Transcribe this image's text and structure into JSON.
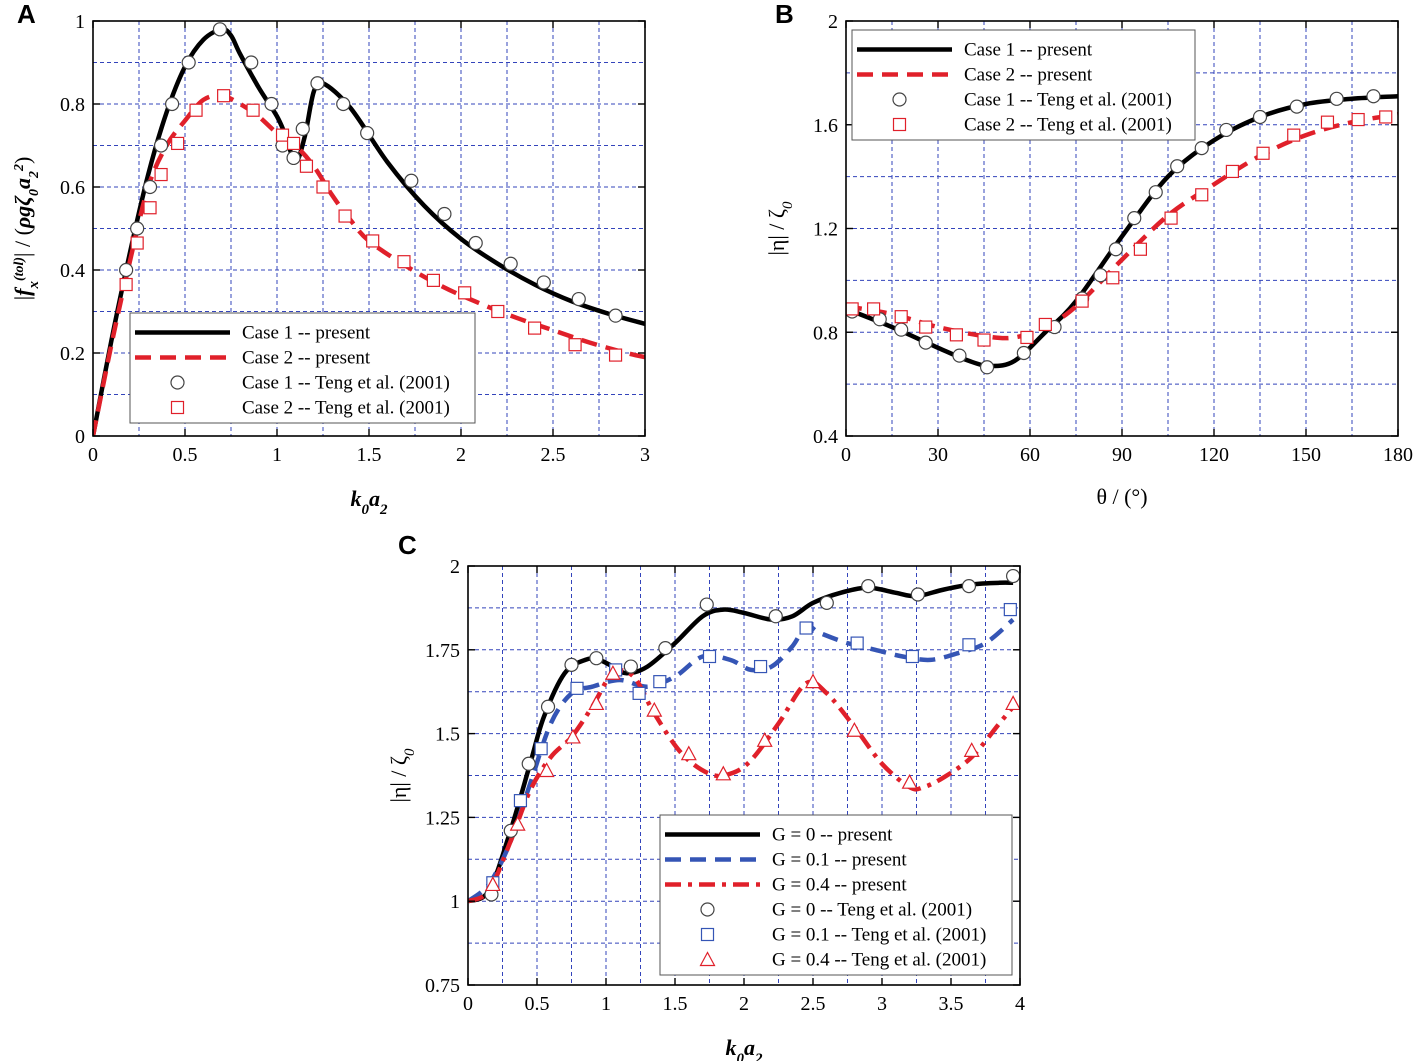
{
  "chart_data": [
    {
      "panel": "A",
      "type": "line",
      "xlabel_main": "k",
      "xlabel_sub1": "0",
      "xlabel_mid": "a",
      "xlabel_sub2": "2",
      "ylabel_parts": [
        "|",
        "f",
        "x",
        "(tol)",
        "|",
        " / (",
        "ρgζ",
        "0",
        "a",
        "2",
        "2",
        ")"
      ],
      "xlim": [
        0,
        3
      ],
      "ylim": [
        0,
        1
      ],
      "xticks": [
        "0",
        "0.5",
        "1",
        "1.5",
        "2",
        "2.5",
        "3"
      ],
      "yticks": [
        "0",
        "0.2",
        "0.4",
        "0.6",
        "0.8",
        "1"
      ],
      "grid": true,
      "legend_position": "bottom-center",
      "series": [
        {
          "name": "Case 1 -- present",
          "style": "solid",
          "color": "#000000",
          "x": [
            0,
            0.1,
            0.2,
            0.3,
            0.4,
            0.5,
            0.6,
            0.7,
            0.75,
            0.8,
            0.9,
            1.0,
            1.05,
            1.1,
            1.15,
            1.2,
            1.25,
            1.4,
            1.6,
            1.8,
            2.0,
            2.2,
            2.4,
            2.6,
            2.8,
            3.0
          ],
          "y": [
            0,
            0.23,
            0.44,
            0.63,
            0.78,
            0.89,
            0.955,
            0.98,
            0.965,
            0.92,
            0.84,
            0.77,
            0.72,
            0.66,
            0.72,
            0.83,
            0.85,
            0.79,
            0.66,
            0.555,
            0.475,
            0.415,
            0.365,
            0.325,
            0.295,
            0.27
          ]
        },
        {
          "name": "Case 2 -- present",
          "style": "dashed",
          "color": "#e0202a",
          "x": [
            0,
            0.1,
            0.2,
            0.3,
            0.4,
            0.5,
            0.6,
            0.7,
            0.8,
            0.9,
            1.0,
            1.1,
            1.2,
            1.3,
            1.4,
            1.5,
            1.7,
            1.9,
            2.1,
            2.3,
            2.5,
            2.7,
            2.9,
            3.0
          ],
          "y": [
            0,
            0.22,
            0.42,
            0.6,
            0.7,
            0.76,
            0.81,
            0.82,
            0.8,
            0.77,
            0.73,
            0.7,
            0.65,
            0.58,
            0.52,
            0.47,
            0.41,
            0.36,
            0.32,
            0.285,
            0.255,
            0.225,
            0.2,
            0.19
          ]
        },
        {
          "name": "Case 1 -- Teng et al. (2001)",
          "style": "circle",
          "color": "#444444",
          "x": [
            0.18,
            0.24,
            0.31,
            0.37,
            0.43,
            0.52,
            0.69,
            0.86,
            0.97,
            1.03,
            1.09,
            1.14,
            1.22,
            1.36,
            1.49,
            1.73,
            1.91,
            2.08,
            2.27,
            2.45,
            2.64,
            2.84
          ],
          "y": [
            0.4,
            0.5,
            0.6,
            0.7,
            0.8,
            0.9,
            0.98,
            0.9,
            0.8,
            0.7,
            0.67,
            0.74,
            0.85,
            0.8,
            0.73,
            0.615,
            0.535,
            0.465,
            0.415,
            0.37,
            0.33,
            0.29
          ]
        },
        {
          "name": "Case 2 -- Teng et al. (2001)",
          "style": "square",
          "color": "#e0202a",
          "x": [
            0.18,
            0.24,
            0.31,
            0.37,
            0.46,
            0.56,
            0.71,
            0.87,
            1.03,
            1.09,
            1.16,
            1.25,
            1.37,
            1.52,
            1.69,
            1.85,
            2.02,
            2.2,
            2.4,
            2.62,
            2.84
          ],
          "y": [
            0.365,
            0.465,
            0.55,
            0.63,
            0.705,
            0.785,
            0.82,
            0.785,
            0.725,
            0.705,
            0.65,
            0.6,
            0.53,
            0.47,
            0.42,
            0.375,
            0.345,
            0.3,
            0.26,
            0.22,
            0.195
          ]
        }
      ]
    },
    {
      "panel": "B",
      "type": "line",
      "xlabel": "θ / (°)",
      "ylabel": "|η| / ζ",
      "ylabel_sub": "0",
      "xlim": [
        0,
        180
      ],
      "ylim": [
        0.4,
        2
      ],
      "xticks": [
        "0",
        "30",
        "60",
        "90",
        "120",
        "150",
        "180"
      ],
      "yticks": [
        "0.4",
        "0.8",
        "1.2",
        "1.6",
        "2"
      ],
      "grid": true,
      "legend_position": "top-left",
      "series": [
        {
          "name": "Case 1 -- present",
          "style": "solid",
          "color": "#000000",
          "x": [
            0,
            15,
            30,
            40,
            47,
            55,
            65,
            75,
            90,
            105,
            120,
            135,
            150,
            165,
            180
          ],
          "y": [
            0.89,
            0.82,
            0.74,
            0.69,
            0.67,
            0.69,
            0.8,
            0.92,
            1.17,
            1.4,
            1.54,
            1.63,
            1.68,
            1.7,
            1.71
          ]
        },
        {
          "name": "Case 2 -- present",
          "style": "dashed",
          "color": "#e0202a",
          "x": [
            0,
            15,
            30,
            45,
            55,
            65,
            75,
            90,
            105,
            120,
            135,
            150,
            165,
            180
          ],
          "y": [
            0.9,
            0.87,
            0.82,
            0.785,
            0.78,
            0.82,
            0.9,
            1.08,
            1.25,
            1.37,
            1.48,
            1.56,
            1.61,
            1.64
          ]
        },
        {
          "name": "Case 1 -- Teng et al. (2001)",
          "style": "circle",
          "color": "#444444",
          "x": [
            2,
            11,
            18,
            26,
            37,
            46,
            58,
            68,
            77,
            83,
            88,
            94,
            101,
            108,
            116,
            124,
            135,
            147,
            160,
            172
          ],
          "y": [
            0.88,
            0.85,
            0.81,
            0.76,
            0.71,
            0.665,
            0.72,
            0.82,
            0.93,
            1.02,
            1.12,
            1.24,
            1.34,
            1.44,
            1.51,
            1.58,
            1.63,
            1.67,
            1.7,
            1.71
          ]
        },
        {
          "name": "Case 2 -- Teng et al. (2001)",
          "style": "square",
          "color": "#e0202a",
          "x": [
            2,
            9,
            18,
            26,
            36,
            45,
            59,
            65,
            77,
            87,
            96,
            106,
            116,
            126,
            136,
            146,
            157,
            167,
            176
          ],
          "y": [
            0.89,
            0.89,
            0.86,
            0.82,
            0.79,
            0.77,
            0.78,
            0.83,
            0.92,
            1.01,
            1.12,
            1.24,
            1.33,
            1.42,
            1.49,
            1.56,
            1.61,
            1.62,
            1.63
          ]
        }
      ]
    },
    {
      "panel": "C",
      "type": "line",
      "xlabel_main": "k",
      "xlabel_sub1": "0",
      "xlabel_mid": "a",
      "xlabel_sub2": "2",
      "ylabel": "|η| / ζ",
      "ylabel_sub": "0",
      "xlim": [
        0,
        4
      ],
      "ylim": [
        0.75,
        2
      ],
      "xticks": [
        "0",
        "0.5",
        "1",
        "1.5",
        "2",
        "2.5",
        "3",
        "3.5",
        "4"
      ],
      "yticks": [
        "0.75",
        "1",
        "1.25",
        "1.5",
        "1.75",
        "2"
      ],
      "grid": true,
      "legend_position": "bottom-right",
      "series": [
        {
          "name": "G = 0  -- present",
          "style": "solid",
          "color": "#000000",
          "x": [
            0,
            0.15,
            0.3,
            0.45,
            0.55,
            0.7,
            0.85,
            0.95,
            1.05,
            1.15,
            1.3,
            1.5,
            1.7,
            1.85,
            2.0,
            2.2,
            2.35,
            2.5,
            2.7,
            2.9,
            3.1,
            3.25,
            3.45,
            3.65,
            3.85,
            3.95
          ],
          "y": [
            1.0,
            1.03,
            1.2,
            1.41,
            1.55,
            1.68,
            1.72,
            1.72,
            1.7,
            1.68,
            1.7,
            1.77,
            1.85,
            1.87,
            1.86,
            1.84,
            1.85,
            1.89,
            1.92,
            1.935,
            1.92,
            1.91,
            1.93,
            1.945,
            1.95,
            1.95
          ]
        },
        {
          "name": "G = 0.1 -- present",
          "style": "dashed",
          "color": "#3555b5",
          "x": [
            0,
            0.15,
            0.3,
            0.45,
            0.6,
            0.75,
            0.9,
            1.1,
            1.3,
            1.5,
            1.7,
            1.9,
            2.05,
            2.2,
            2.35,
            2.45,
            2.55,
            2.75,
            2.95,
            3.15,
            3.35,
            3.55,
            3.75,
            3.95
          ],
          "y": [
            1.0,
            1.05,
            1.17,
            1.35,
            1.53,
            1.62,
            1.64,
            1.66,
            1.64,
            1.67,
            1.73,
            1.72,
            1.69,
            1.7,
            1.76,
            1.82,
            1.8,
            1.77,
            1.75,
            1.73,
            1.72,
            1.74,
            1.77,
            1.84
          ]
        },
        {
          "name": "G = 0.4 -- present",
          "style": "dashdot",
          "color": "#e0202a",
          "x": [
            0,
            0.15,
            0.3,
            0.45,
            0.6,
            0.75,
            0.9,
            1.05,
            1.2,
            1.35,
            1.55,
            1.75,
            1.9,
            2.05,
            2.25,
            2.45,
            2.6,
            2.8,
            3.0,
            3.2,
            3.3,
            3.45,
            3.65,
            3.85,
            3.95
          ],
          "y": [
            1.0,
            1.03,
            1.17,
            1.33,
            1.43,
            1.49,
            1.58,
            1.68,
            1.67,
            1.56,
            1.44,
            1.38,
            1.38,
            1.42,
            1.53,
            1.65,
            1.62,
            1.52,
            1.41,
            1.34,
            1.34,
            1.37,
            1.43,
            1.53,
            1.58
          ]
        },
        {
          "name": "G = 0 -- Teng et al. (2001)",
          "style": "circle",
          "color": "#444444",
          "x": [
            0.17,
            0.31,
            0.44,
            0.58,
            0.75,
            0.93,
            1.18,
            1.43,
            1.73,
            2.23,
            2.6,
            2.9,
            3.26,
            3.63,
            3.95
          ],
          "y": [
            1.02,
            1.21,
            1.41,
            1.58,
            1.705,
            1.725,
            1.7,
            1.755,
            1.885,
            1.85,
            1.89,
            1.94,
            1.915,
            1.94,
            1.97
          ]
        },
        {
          "name": "G = 0.1 -- Teng et al. (2001)",
          "style": "square",
          "color": "#3555b5",
          "x": [
            0.18,
            0.38,
            0.53,
            0.79,
            1.07,
            1.24,
            1.39,
            1.75,
            2.12,
            2.45,
            2.82,
            3.22,
            3.63,
            3.93
          ],
          "y": [
            1.055,
            1.3,
            1.455,
            1.635,
            1.69,
            1.62,
            1.655,
            1.73,
            1.7,
            1.815,
            1.77,
            1.73,
            1.765,
            1.87
          ]
        },
        {
          "name": "G = 0.4 -- Teng et al. (2001)",
          "style": "triangle",
          "color": "#e0202a",
          "x": [
            0.18,
            0.36,
            0.57,
            0.76,
            0.93,
            1.05,
            1.35,
            1.6,
            1.85,
            2.15,
            2.5,
            2.8,
            3.2,
            3.65,
            3.95
          ],
          "y": [
            1.05,
            1.23,
            1.39,
            1.49,
            1.59,
            1.68,
            1.57,
            1.44,
            1.38,
            1.48,
            1.655,
            1.51,
            1.355,
            1.45,
            1.59
          ]
        }
      ]
    }
  ]
}
